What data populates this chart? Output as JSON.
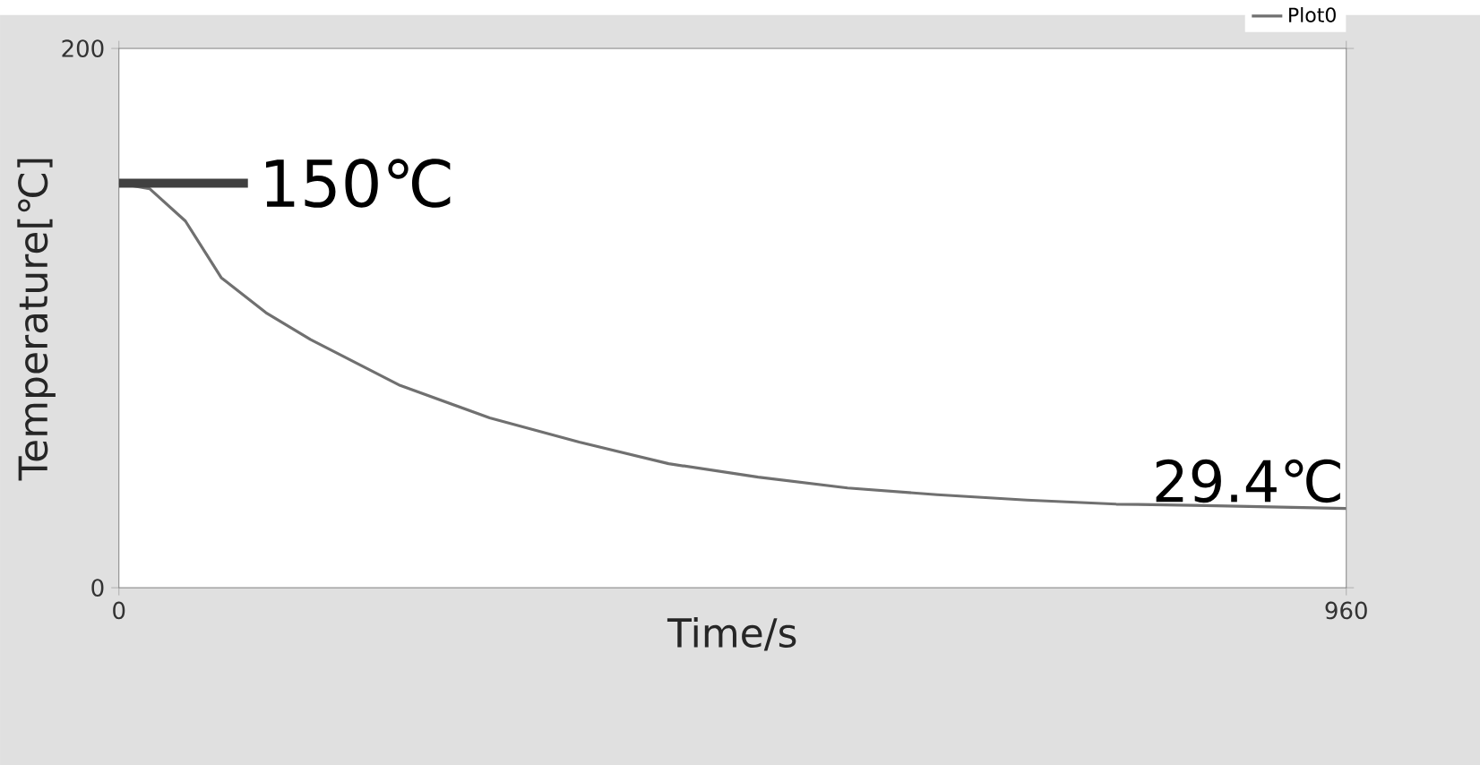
{
  "chart_data": {
    "type": "line",
    "xlabel": "Time/s",
    "ylabel": "Temperature[℃]",
    "x": [
      0,
      24,
      52,
      80,
      115,
      150,
      220,
      290,
      360,
      430,
      500,
      570,
      640,
      710,
      780,
      850,
      960
    ],
    "series": [
      {
        "name": "Plot0",
        "color": "#707070",
        "values": [
          150,
          148,
          136,
          115,
          102,
          92,
          75,
          63,
          54,
          46,
          41,
          37,
          34.5,
          32.5,
          31,
          30.5,
          29.4
        ]
      }
    ],
    "xlim": [
      0,
      960
    ],
    "xticks": [
      0,
      960
    ],
    "ylim": [
      0,
      200
    ],
    "yticks": [
      0,
      200
    ],
    "legend": "top right",
    "grid": false,
    "annotations": [
      {
        "text": "150℃",
        "x": 0,
        "y": 150
      },
      {
        "text": "29.4℃",
        "x": 960,
        "y": 29.4
      }
    ]
  }
}
